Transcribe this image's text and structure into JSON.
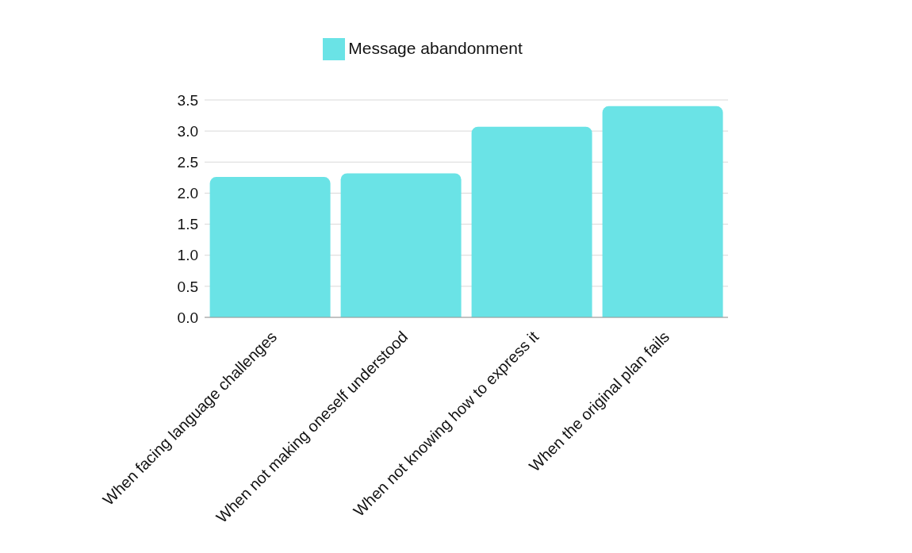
{
  "chart_data": {
    "type": "bar",
    "categories": [
      "When facing language challenges",
      "When not making oneself understood",
      "When not knowing how to express it",
      "When the original plan fails"
    ],
    "series": [
      {
        "name": "Message abandonment",
        "color": "#6ae3e6",
        "values": [
          2.26,
          2.32,
          3.07,
          3.4
        ]
      }
    ],
    "ylim": [
      0,
      3.5
    ],
    "yticks": [
      {
        "value": 0,
        "label": "0.0"
      },
      {
        "value": 0.5,
        "label": "0.5"
      },
      {
        "value": 1,
        "label": "1.0"
      },
      {
        "value": 1.5,
        "label": "1.5"
      },
      {
        "value": 2,
        "label": "2.0"
      },
      {
        "value": 2.5,
        "label": "2.5"
      },
      {
        "value": 3,
        "label": "3.0"
      },
      {
        "value": 3.5,
        "label": "3.5"
      }
    ],
    "grid": "y",
    "legend": "top"
  }
}
